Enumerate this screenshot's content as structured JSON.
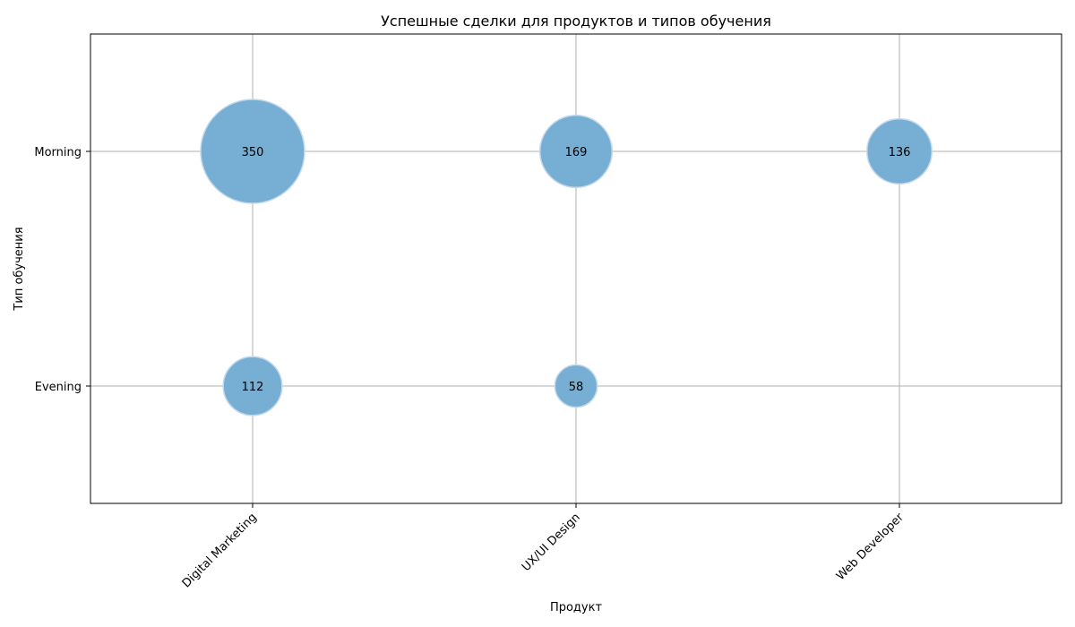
{
  "chart_data": {
    "type": "scatter",
    "subtype": "bubble",
    "title": "Успешные сделки для продуктов и типов обучения",
    "xlabel": "Продукт",
    "ylabel": "Тип обучения",
    "x_categories": [
      "Digital Marketing",
      "UX/UI Design",
      "Web Developer"
    ],
    "y_categories": [
      "Evening",
      "Morning"
    ],
    "points": [
      {
        "x": "Digital Marketing",
        "y": "Morning",
        "value": 350
      },
      {
        "x": "UX/UI Design",
        "y": "Morning",
        "value": 169
      },
      {
        "x": "Web Developer",
        "y": "Morning",
        "value": 136
      },
      {
        "x": "Digital Marketing",
        "y": "Evening",
        "value": 112
      },
      {
        "x": "UX/UI Design",
        "y": "Evening",
        "value": 58
      }
    ],
    "grid": true,
    "x_tick_rotation_deg": 45,
    "bubble_color": "#77aed3",
    "bubble_edge_color": "#c3d9eb"
  }
}
